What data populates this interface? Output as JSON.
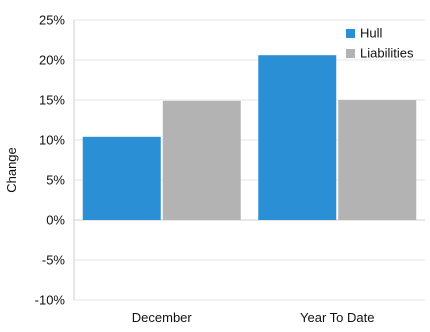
{
  "chart_data": {
    "type": "bar",
    "title": "",
    "xlabel": "",
    "ylabel": "Change",
    "categories": [
      "December",
      "Year To Date"
    ],
    "series": [
      {
        "name": "Hull",
        "color": "#2a8fd4",
        "values": [
          10.4,
          20.6
        ]
      },
      {
        "name": "Liabilities",
        "color": "#b3b3b3",
        "values": [
          14.9,
          15.0
        ]
      }
    ],
    "ylim": [
      -10,
      25
    ],
    "yticks": [
      25,
      20,
      15,
      10,
      5,
      0,
      -5,
      -10
    ],
    "ytick_labels": [
      "25%",
      "20%",
      "15%",
      "10%",
      "5%",
      "0%",
      "-5%",
      "-10%"
    ],
    "grid": true,
    "legend_position": "top-right"
  }
}
